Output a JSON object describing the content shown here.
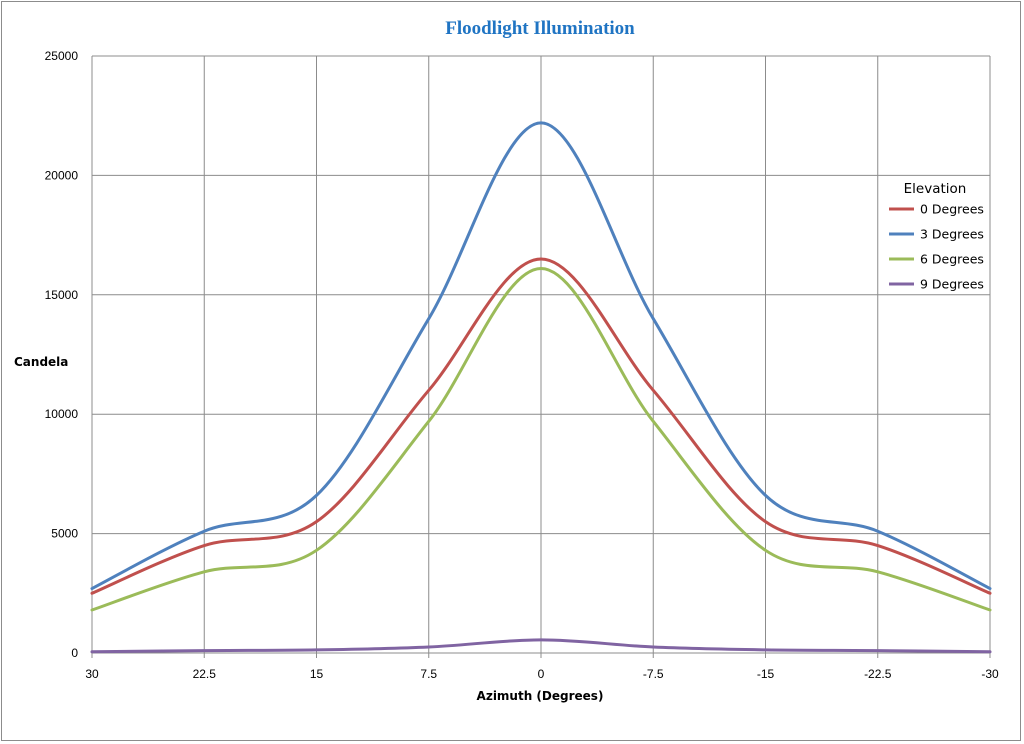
{
  "chart_data": {
    "type": "line",
    "title": "Floodlight Illumination",
    "xlabel": "Azimuth (Degrees)",
    "ylabel": "Candela",
    "x": [
      30,
      22.5,
      15,
      7.5,
      0,
      -7.5,
      -15,
      -22.5,
      -30
    ],
    "x_tick_labels": [
      "30",
      "22.5",
      "15",
      "7.5",
      "0",
      "-7.5",
      "-15",
      "-22.5",
      "-30"
    ],
    "xlim": [
      30,
      -30
    ],
    "ylim": [
      0,
      25000
    ],
    "y_ticks": [
      0,
      5000,
      10000,
      15000,
      20000,
      25000
    ],
    "grid": true,
    "smooth": true,
    "legend": {
      "title": "Elevation",
      "placement": "right"
    },
    "series": [
      {
        "name": "0 Degrees",
        "color": "#c0504d",
        "values": [
          2500,
          4500,
          5500,
          11000,
          16500,
          11000,
          5500,
          4500,
          2500
        ]
      },
      {
        "name": "3 Degrees",
        "color": "#4f81bd",
        "values": [
          2700,
          5100,
          6600,
          14000,
          22200,
          14000,
          6600,
          5100,
          2700
        ]
      },
      {
        "name": "6 Degrees",
        "color": "#9bbb59",
        "values": [
          1800,
          3400,
          4300,
          9700,
          16100,
          9700,
          4300,
          3400,
          1800
        ]
      },
      {
        "name": "9 Degrees",
        "color": "#8064a2",
        "values": [
          50,
          100,
          130,
          250,
          550,
          250,
          130,
          100,
          50
        ]
      }
    ],
    "title_color": "#1f74c3"
  }
}
